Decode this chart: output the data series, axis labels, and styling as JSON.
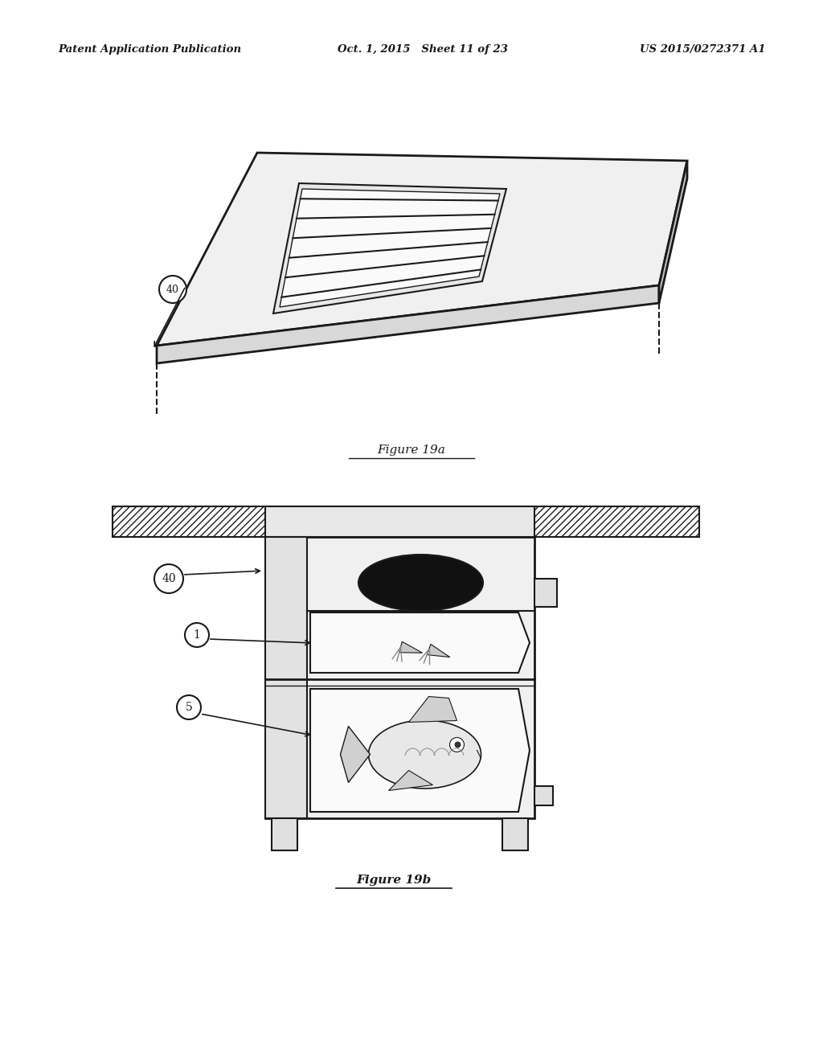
{
  "bg_color": "#ffffff",
  "header_left": "Patent Application Publication",
  "header_mid": "Oct. 1, 2015   Sheet 11 of 23",
  "header_right": "US 2015/0272371 A1",
  "fig19a_label": "Figure 19a",
  "fig19b_label": "Figure 19b",
  "label_40a": "40",
  "label_40b": "40",
  "label_1": "1",
  "label_5": "5",
  "color_main": "#1a1a1a",
  "color_light": "#f5f5f5",
  "color_mid": "#e0e0e0",
  "color_dark": "#c0c0c0"
}
